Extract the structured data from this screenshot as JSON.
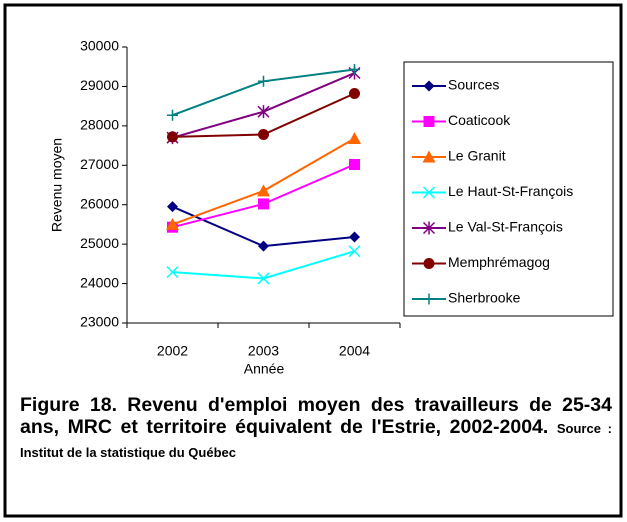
{
  "chart_data": {
    "type": "line",
    "categories": [
      "2002",
      "2003",
      "2004"
    ],
    "y_label": "Revenu moyen",
    "x_label": "Année",
    "ylim": [
      23000,
      30000
    ],
    "yticks": [
      23000,
      24000,
      25000,
      26000,
      27000,
      28000,
      29000,
      30000
    ],
    "legend": "right",
    "series": [
      {
        "name": "Sources",
        "color": "#000080",
        "marker": "diamond",
        "values": [
          25950,
          24950,
          25180
        ]
      },
      {
        "name": "Coaticook",
        "color": "#ff00ff",
        "marker": "square",
        "values": [
          25430,
          26020,
          27020
        ]
      },
      {
        "name": "Le Granit",
        "color": "#ff6600",
        "marker": "triangle",
        "values": [
          25500,
          26350,
          27680
        ]
      },
      {
        "name": "Le Haut-St-François",
        "color": "#00ffff",
        "marker": "x",
        "values": [
          24290,
          24130,
          24820
        ]
      },
      {
        "name": "Le Val-St-François",
        "color": "#800080",
        "marker": "star",
        "values": [
          27700,
          28360,
          29340
        ]
      },
      {
        "name": "Memphrémagog",
        "color": "#800000",
        "marker": "circle",
        "values": [
          27720,
          27780,
          28820
        ]
      },
      {
        "name": "Sherbrooke",
        "color": "#008080",
        "marker": "plus",
        "values": [
          28270,
          29130,
          29430
        ]
      }
    ]
  },
  "caption": {
    "figure": "Figure 18. Revenu d'emploi moyen des travailleurs de 25-34 ans, MRC et territoire équivalent de l'Estrie, 2002-2004.",
    "source": "Source : Institut de la statistique du Québec"
  }
}
